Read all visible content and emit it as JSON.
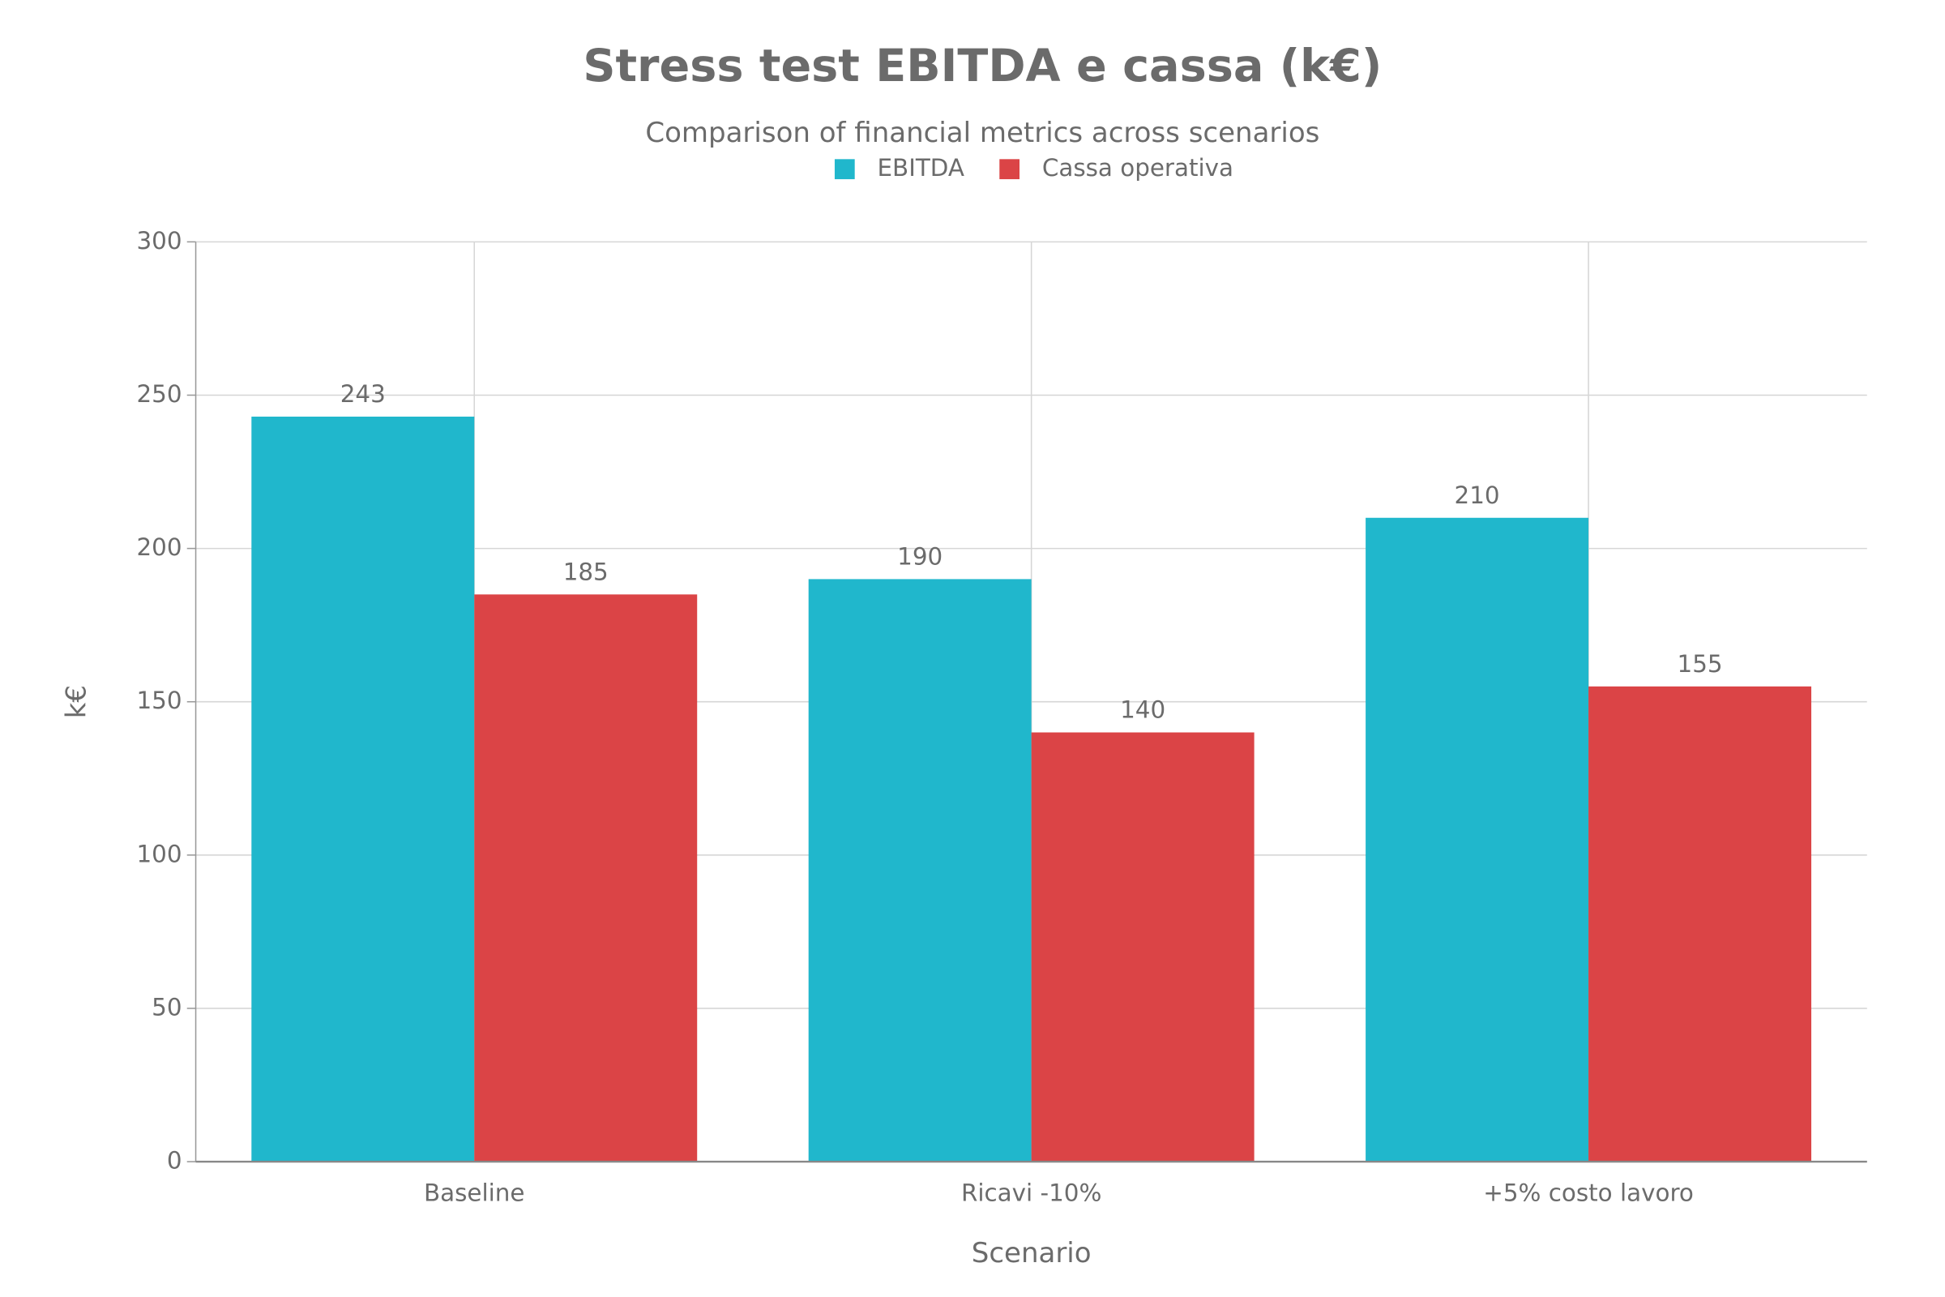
{
  "chart_data": {
    "type": "bar",
    "title": "Stress test EBITDA e cassa (k€)",
    "subtitle": "Comparison of financial metrics across scenarios",
    "x_label": "Scenario",
    "y_label": "k€",
    "categories": [
      "Baseline",
      "Ricavi -10%",
      "+5% costo lavoro"
    ],
    "series": [
      {
        "name": "EBITDA",
        "color": "#20b7cc",
        "values": [
          243,
          190,
          210
        ]
      },
      {
        "name": "Cassa operativa",
        "color": "#db4446",
        "values": [
          185,
          140,
          155
        ]
      }
    ],
    "ylim": [
      0,
      300
    ],
    "yticks": [
      0,
      50,
      100,
      150,
      200,
      250,
      300
    ],
    "grid": true
  }
}
